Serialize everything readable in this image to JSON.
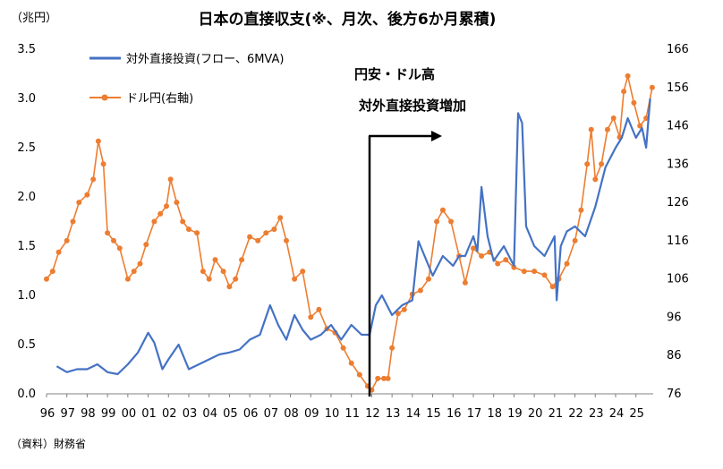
{
  "chart_data": {
    "type": "line",
    "title": "日本の直接収支(※、月次、後方6か月累積)",
    "ylabel": "（兆円）",
    "source": "（資料）財務省",
    "annotation": {
      "lines": [
        "円安・ドル高",
        "対外直接投資増加"
      ],
      "event_year": "12"
    },
    "x_tick_labels": [
      "96",
      "97",
      "98",
      "99",
      "00",
      "01",
      "02",
      "03",
      "04",
      "05",
      "06",
      "07",
      "08",
      "09",
      "10",
      "11",
      "12",
      "13",
      "14",
      "15",
      "16",
      "17",
      "18",
      "19",
      "20",
      "21",
      "22",
      "23",
      "24",
      "25"
    ],
    "x_range": [
      1996.0,
      2025.85
    ],
    "ylim_left": [
      0,
      3.5
    ],
    "y_ticks_left": [
      "0.0",
      "0.5",
      "1.0",
      "1.5",
      "2.0",
      "2.5",
      "3.0",
      "3.5"
    ],
    "ylim_right": [
      76,
      166
    ],
    "y_ticks_right": [
      "76",
      "86",
      "96",
      "106",
      "116",
      "126",
      "136",
      "146",
      "156",
      "166"
    ],
    "series": [
      {
        "name": "対外直接投資(フロー、6MVA)",
        "axis": "left",
        "color": "#4472C4",
        "x": [
          1996.5,
          1997.0,
          1997.5,
          1998.0,
          1998.5,
          1999.0,
          1999.5,
          2000.0,
          2000.5,
          2001.0,
          2001.3,
          2001.7,
          2002.0,
          2002.5,
          2003.0,
          2003.5,
          2004.0,
          2004.5,
          2005.0,
          2005.5,
          2006.0,
          2006.5,
          2007.0,
          2007.4,
          2007.8,
          2008.2,
          2008.6,
          2009.0,
          2009.5,
          2010.0,
          2010.5,
          2011.0,
          2011.5,
          2011.9,
          2012.2,
          2012.5,
          2013.0,
          2013.5,
          2014.0,
          2014.3,
          2014.6,
          2015.0,
          2015.5,
          2016.0,
          2016.3,
          2016.6,
          2017.0,
          2017.2,
          2017.4,
          2017.7,
          2018.0,
          2018.5,
          2019.0,
          2019.2,
          2019.4,
          2019.6,
          2020.0,
          2020.5,
          2021.0,
          2021.1,
          2021.3,
          2021.6,
          2022.0,
          2022.5,
          2023.0,
          2023.5,
          2024.0,
          2024.3,
          2024.6,
          2025.0,
          2025.3,
          2025.5,
          2025.7
        ],
        "values": [
          0.28,
          0.22,
          0.25,
          0.25,
          0.3,
          0.22,
          0.2,
          0.3,
          0.42,
          0.62,
          0.52,
          0.25,
          0.35,
          0.5,
          0.25,
          0.3,
          0.35,
          0.4,
          0.42,
          0.45,
          0.55,
          0.6,
          0.9,
          0.7,
          0.55,
          0.8,
          0.65,
          0.55,
          0.6,
          0.7,
          0.55,
          0.7,
          0.6,
          0.6,
          0.9,
          1.0,
          0.8,
          0.9,
          0.95,
          1.55,
          1.4,
          1.2,
          1.4,
          1.3,
          1.4,
          1.4,
          1.6,
          1.45,
          2.1,
          1.6,
          1.35,
          1.5,
          1.3,
          2.85,
          2.75,
          1.7,
          1.5,
          1.4,
          1.6,
          0.95,
          1.5,
          1.65,
          1.7,
          1.6,
          1.9,
          2.3,
          2.5,
          2.6,
          2.8,
          2.6,
          2.7,
          2.5,
          3.0
        ]
      },
      {
        "name": "ドル円(右軸)",
        "axis": "right",
        "color": "#ED7D31",
        "x": [
          1996.0,
          1996.3,
          1996.6,
          1997.0,
          1997.3,
          1997.6,
          1998.0,
          1998.3,
          1998.55,
          1998.8,
          1999.0,
          1999.3,
          1999.6,
          2000.0,
          2000.3,
          2000.6,
          2000.9,
          2001.3,
          2001.6,
          2001.9,
          2002.1,
          2002.4,
          2002.7,
          2003.0,
          2003.4,
          2003.7,
          2004.0,
          2004.3,
          2004.7,
          2005.0,
          2005.3,
          2005.6,
          2006.0,
          2006.4,
          2006.8,
          2007.2,
          2007.5,
          2007.8,
          2008.2,
          2008.6,
          2009.0,
          2009.4,
          2009.8,
          2010.2,
          2010.6,
          2011.0,
          2011.4,
          2011.8,
          2012.0,
          2012.3,
          2012.6,
          2012.8,
          2013.0,
          2013.3,
          2013.6,
          2014.0,
          2014.4,
          2014.8,
          2015.2,
          2015.5,
          2015.9,
          2016.3,
          2016.6,
          2017.0,
          2017.4,
          2017.8,
          2018.2,
          2018.6,
          2019.0,
          2019.5,
          2020.0,
          2020.5,
          2020.9,
          2021.2,
          2021.6,
          2022.0,
          2022.3,
          2022.6,
          2022.8,
          2023.0,
          2023.3,
          2023.6,
          2023.9,
          2024.2,
          2024.4,
          2024.6,
          2024.9,
          2025.2,
          2025.5,
          2025.8
        ],
        "values": [
          106,
          108,
          113,
          116,
          121,
          126,
          128,
          132,
          142,
          136,
          118,
          116,
          114,
          106,
          108,
          110,
          115,
          121,
          123,
          125,
          132,
          126,
          121,
          119,
          118,
          108,
          106,
          111,
          108,
          104,
          106,
          111,
          117,
          116,
          118,
          119,
          122,
          116,
          106,
          108,
          96,
          98,
          93,
          92,
          88,
          84,
          81,
          78,
          77,
          80,
          80,
          80,
          88,
          97,
          98,
          102,
          103,
          106,
          121,
          124,
          121,
          112,
          105,
          114,
          112,
          113,
          110,
          111,
          109,
          108,
          108,
          107,
          104,
          106,
          110,
          116,
          124,
          136,
          145,
          132,
          136,
          145,
          148,
          143,
          155,
          159,
          152,
          146,
          148,
          156
        ]
      }
    ]
  },
  "legend": {
    "items": [
      {
        "label": "対外直接投資(フロー、6MVA)",
        "color": "#4472C4"
      },
      {
        "label": "ドル円(右軸)",
        "color": "#ED7D31"
      }
    ]
  }
}
